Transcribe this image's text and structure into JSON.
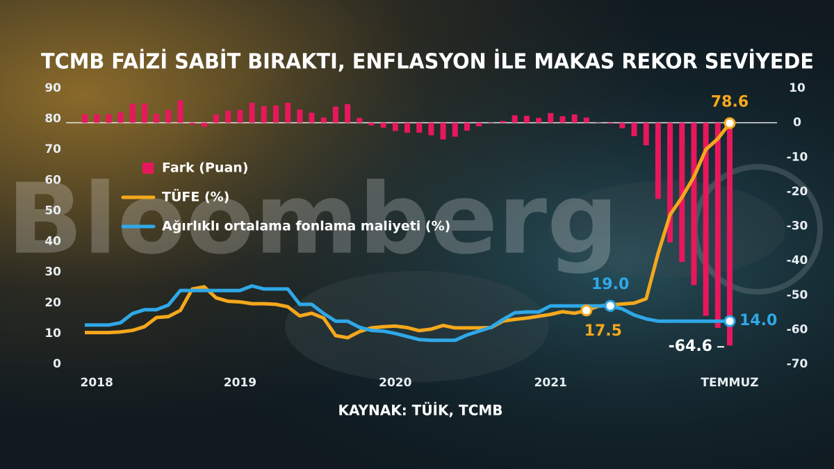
{
  "chart_data": {
    "type": "combo",
    "title": "TCMB FAİZİ SABİT BIRAKTI, ENFLASYON İLE MAKAS REKOR SEVİYEDE",
    "source": "KAYNAK: TÜİK, TCMB",
    "watermark": "Bloomberg",
    "categories": [
      null,
      "2018",
      null,
      null,
      null,
      null,
      null,
      null,
      null,
      null,
      null,
      null,
      null,
      "2019",
      null,
      null,
      null,
      null,
      null,
      null,
      null,
      null,
      null,
      null,
      null,
      null,
      "2020",
      null,
      null,
      null,
      null,
      null,
      null,
      null,
      null,
      null,
      null,
      null,
      null,
      "2021",
      null,
      null,
      null,
      null,
      null,
      null,
      null,
      null,
      null,
      null,
      null,
      null,
      null,
      null,
      "TEMMUZ"
    ],
    "ylim": [
      0,
      90
    ],
    "yticks": [
      0,
      10,
      20,
      30,
      40,
      50,
      60,
      70,
      80,
      90
    ],
    "y2lim": [
      -70,
      10
    ],
    "y2ticks": [
      10,
      0,
      -10,
      -20,
      -30,
      -40,
      -50,
      -60,
      -70
    ],
    "legend": "upper left",
    "series": [
      {
        "name": "Fark (Puan)",
        "type": "bar",
        "axis": "y2",
        "color": "#e8175d",
        "values": [
          2.45,
          2.45,
          2.45,
          3.0,
          5.5,
          5.55,
          2.55,
          3.75,
          6.5,
          -0.5,
          -1.2,
          2.4,
          3.5,
          3.7,
          5.8,
          4.8,
          5.0,
          5.8,
          3.8,
          2.9,
          1.5,
          4.7,
          5.4,
          1.4,
          -0.8,
          -1.45,
          -2.4,
          -2.9,
          -2.9,
          -3.65,
          -4.85,
          -4.05,
          -2.3,
          -1.05,
          0.1,
          0.5,
          2.15,
          2.0,
          1.4,
          2.8,
          1.9,
          2.4,
          1.5,
          0.1,
          -0.3,
          -1.6,
          -3.9,
          -6.55,
          -22.1,
          -34.7,
          -40.4,
          -47.1,
          -56.0,
          -59.5,
          -64.6
        ],
        "value_labels": [
          null,
          null,
          null,
          null,
          null,
          null,
          null,
          null,
          null,
          null,
          null,
          null,
          null,
          null,
          null,
          null,
          null,
          null,
          null,
          null,
          null,
          null,
          null,
          null,
          null,
          null,
          null,
          null,
          null,
          null,
          null,
          null,
          null,
          null,
          null,
          null,
          null,
          null,
          null,
          null,
          null,
          null,
          null,
          null,
          null,
          null,
          null,
          null,
          null,
          null,
          null,
          null,
          null,
          null,
          "-64.6"
        ]
      },
      {
        "name": "TÜFE (%)",
        "type": "line",
        "color": "#f5a81c",
        "values": [
          10.3,
          10.3,
          10.3,
          10.5,
          11.0,
          12.2,
          15.2,
          15.5,
          17.5,
          24.5,
          25.2,
          21.6,
          20.5,
          20.3,
          19.7,
          19.7,
          19.5,
          18.7,
          15.7,
          16.6,
          15.0,
          9.3,
          8.6,
          10.6,
          11.8,
          12.2,
          12.4,
          11.9,
          10.9,
          11.4,
          12.6,
          11.8,
          11.8,
          11.8,
          11.9,
          14.0,
          14.6,
          15.0,
          15.6,
          16.2,
          17.1,
          16.6,
          17.5,
          18.9,
          19.3,
          19.6,
          19.9,
          21.3,
          36.1,
          48.7,
          54.4,
          61.1,
          70.0,
          73.5,
          78.6
        ],
        "value_labels": [
          null,
          null,
          null,
          null,
          null,
          null,
          null,
          null,
          null,
          null,
          null,
          null,
          null,
          null,
          null,
          null,
          null,
          null,
          null,
          null,
          null,
          null,
          null,
          null,
          null,
          null,
          null,
          null,
          null,
          null,
          null,
          null,
          null,
          null,
          null,
          null,
          null,
          null,
          null,
          null,
          null,
          null,
          "17.5",
          null,
          null,
          null,
          null,
          null,
          null,
          null,
          null,
          null,
          null,
          null,
          "78.6"
        ]
      },
      {
        "name": "Ağırlıklı ortalama fonlama maliyeti (%)",
        "type": "line",
        "color": "#2fa8e8",
        "values": [
          12.75,
          12.75,
          12.75,
          13.5,
          16.5,
          17.75,
          17.75,
          19.25,
          24.0,
          24.0,
          24.0,
          24.0,
          24.0,
          24.0,
          25.5,
          24.5,
          24.5,
          24.5,
          19.5,
          19.5,
          16.5,
          14.0,
          14.0,
          12.0,
          11.0,
          10.75,
          10.0,
          9.0,
          8.0,
          7.75,
          7.75,
          7.75,
          9.5,
          10.75,
          12.0,
          14.5,
          16.75,
          17.0,
          17.0,
          19.0,
          19.0,
          19.0,
          19.0,
          19.0,
          19.0,
          18.0,
          16.0,
          14.75,
          14.0,
          14.0,
          14.0,
          14.0,
          14.0,
          14.0,
          14.0
        ],
        "value_labels": [
          null,
          null,
          null,
          null,
          null,
          null,
          null,
          null,
          null,
          null,
          null,
          null,
          null,
          null,
          null,
          null,
          null,
          null,
          null,
          null,
          null,
          null,
          null,
          null,
          null,
          null,
          null,
          null,
          null,
          null,
          null,
          null,
          null,
          null,
          null,
          null,
          null,
          null,
          null,
          null,
          null,
          null,
          null,
          null,
          "19.0",
          null,
          null,
          null,
          null,
          null,
          null,
          null,
          null,
          null,
          "14.0"
        ]
      }
    ]
  }
}
